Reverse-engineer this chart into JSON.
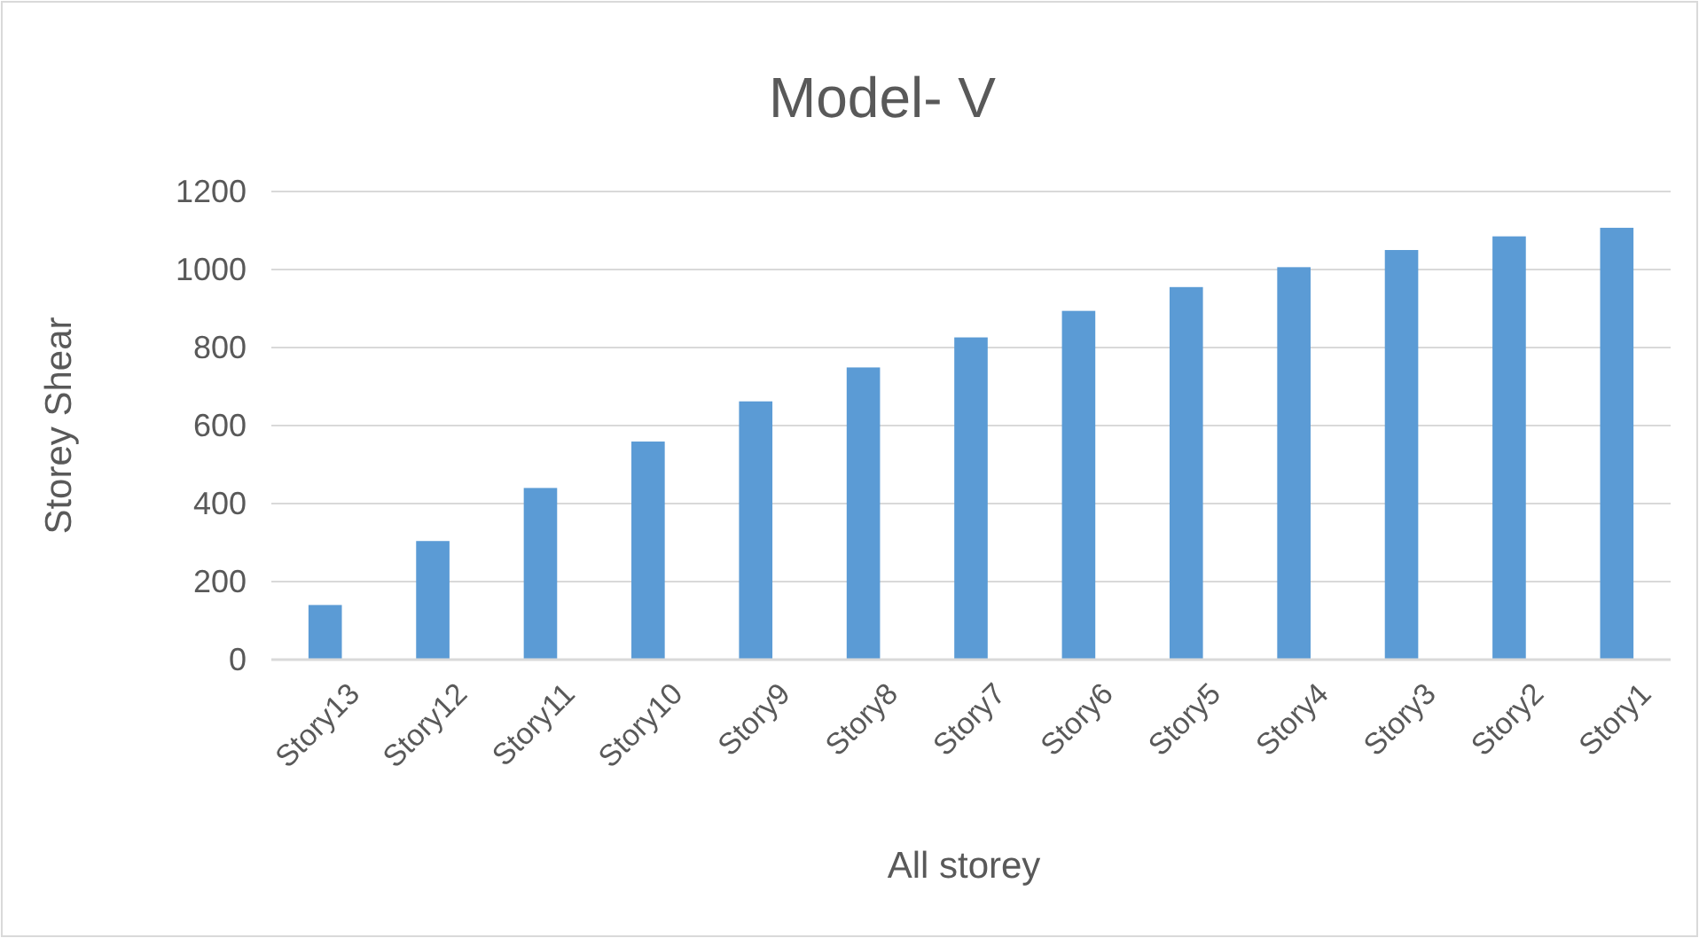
{
  "chart_data": {
    "type": "bar",
    "title": "Model- V",
    "xlabel": "All storey",
    "ylabel": "Storey Shear",
    "categories": [
      "Story13",
      "Story12",
      "Story11",
      "Story10",
      "Story9",
      "Story8",
      "Story7",
      "Story6",
      "Story5",
      "Story4",
      "Story3",
      "Story2",
      "Story1"
    ],
    "values": [
      140,
      304,
      440,
      559,
      662,
      749,
      826,
      894,
      955,
      1006,
      1050,
      1085,
      1107
    ],
    "color": "#5b9bd5",
    "ylim": [
      0,
      1200
    ],
    "yticks": [
      0,
      200,
      400,
      600,
      800,
      1000,
      1200
    ],
    "grid": "y"
  }
}
